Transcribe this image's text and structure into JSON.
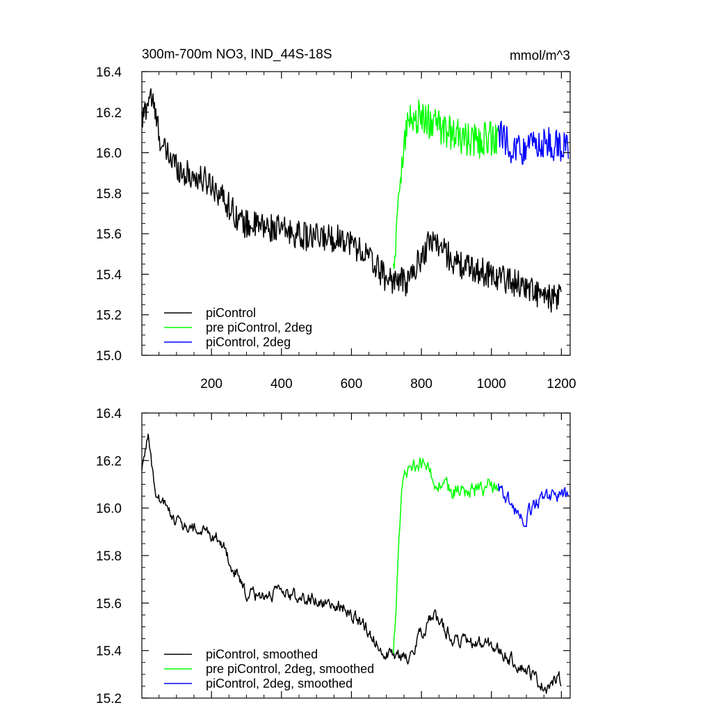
{
  "chart_data": [
    {
      "type": "line",
      "title": "300m-700m NO3, IND_44S-18S",
      "units": "mmol/m^3",
      "xlim": [
        1,
        1225
      ],
      "ylim": [
        15.0,
        16.4
      ],
      "xticks": [
        200,
        400,
        600,
        800,
        1000,
        1200
      ],
      "yticks": [
        "15.0",
        "15.2",
        "15.4",
        "15.6",
        "15.8",
        "16.0",
        "16.2",
        "16.4"
      ],
      "legend": {
        "placement": "bottom-left"
      },
      "series": [
        {
          "name": "piControl",
          "color": "#000000",
          "x_range": [
            1,
            1200
          ],
          "trend": [
            [
              1,
              16.15
            ],
            [
              25,
              16.3
            ],
            [
              60,
              16.02
            ],
            [
              120,
              15.9
            ],
            [
              200,
              15.85
            ],
            [
              290,
              15.65
            ],
            [
              400,
              15.62
            ],
            [
              480,
              15.58
            ],
            [
              580,
              15.58
            ],
            [
              640,
              15.5
            ],
            [
              700,
              15.38
            ],
            [
              760,
              15.36
            ],
            [
              830,
              15.58
            ],
            [
              900,
              15.45
            ],
            [
              1000,
              15.4
            ],
            [
              1100,
              15.34
            ],
            [
              1150,
              15.28
            ],
            [
              1200,
              15.28
            ]
          ],
          "noise": 0.07
        },
        {
          "name": "pre piControl, 2deg",
          "color": "#00ff00",
          "x_range": [
            720,
            1020
          ],
          "trend": [
            [
              720,
              15.4
            ],
            [
              745,
              16.0
            ],
            [
              760,
              16.15
            ],
            [
              800,
              16.18
            ],
            [
              850,
              16.12
            ],
            [
              900,
              16.08
            ],
            [
              950,
              16.05
            ],
            [
              1020,
              16.08
            ]
          ],
          "noise": 0.09
        },
        {
          "name": "piControl, 2deg",
          "color": "#0000ff",
          "x_range": [
            1020,
            1220
          ],
          "trend": [
            [
              1020,
              16.1
            ],
            [
              1060,
              16.02
            ],
            [
              1100,
              16.02
            ],
            [
              1150,
              16.05
            ],
            [
              1220,
              16.02
            ]
          ],
          "noise": 0.08
        }
      ]
    },
    {
      "type": "line",
      "xlim": [
        1,
        1225
      ],
      "ylim": [
        15.2,
        16.4
      ],
      "yticks": [
        "15.2",
        "15.4",
        "15.6",
        "15.8",
        "16.0",
        "16.2",
        "16.4"
      ],
      "legend": {
        "placement": "bottom-left"
      },
      "series": [
        {
          "name": "piControl, smoothed",
          "color": "#000000",
          "x_range": [
            1,
            1200
          ],
          "trend": [
            [
              1,
              16.15
            ],
            [
              18,
              16.32
            ],
            [
              40,
              16.05
            ],
            [
              120,
              15.92
            ],
            [
              220,
              15.88
            ],
            [
              300,
              15.63
            ],
            [
              400,
              15.64
            ],
            [
              480,
              15.62
            ],
            [
              580,
              15.58
            ],
            [
              640,
              15.5
            ],
            [
              700,
              15.38
            ],
            [
              760,
              15.37
            ],
            [
              830,
              15.55
            ],
            [
              900,
              15.44
            ],
            [
              1000,
              15.42
            ],
            [
              1100,
              15.32
            ],
            [
              1150,
              15.25
            ],
            [
              1200,
              15.28
            ]
          ],
          "noise": 0.035
        },
        {
          "name": "pre piControl, 2deg, smoothed",
          "color": "#00ff00",
          "x_range": [
            720,
            1020
          ],
          "trend": [
            [
              720,
              15.38
            ],
            [
              745,
              16.1
            ],
            [
              760,
              16.16
            ],
            [
              800,
              16.2
            ],
            [
              850,
              16.1
            ],
            [
              900,
              16.06
            ],
            [
              950,
              16.07
            ],
            [
              1020,
              16.1
            ]
          ],
          "noise": 0.045
        },
        {
          "name": "piControl, 2deg, smoothed",
          "color": "#0000ff",
          "x_range": [
            1020,
            1220
          ],
          "trend": [
            [
              1020,
              16.1
            ],
            [
              1060,
              16.0
            ],
            [
              1090,
              15.95
            ],
            [
              1150,
              16.05
            ],
            [
              1220,
              16.05
            ]
          ],
          "noise": 0.04
        }
      ]
    }
  ]
}
